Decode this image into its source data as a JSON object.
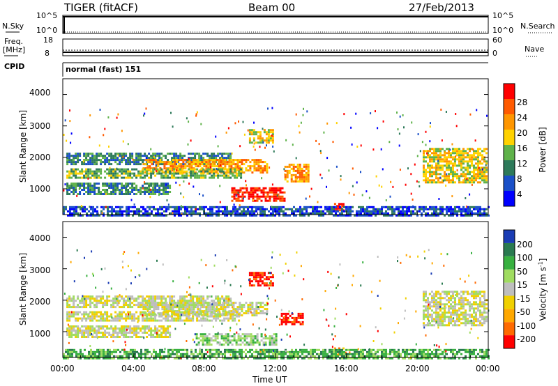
{
  "header": {
    "station": "TIGER (fitACF)",
    "beam": "Beam 00",
    "date": "27/Feb/2013"
  },
  "top_panels": {
    "nsky_label": "N.Sky",
    "nsky_ticks": [
      "10^5",
      "10^0"
    ],
    "nsearch_label": "N.Search",
    "nsearch_ticks": [
      "10^5",
      "10^0"
    ],
    "freq_label_line1": "Freq.",
    "freq_label_line2": "[MHz]",
    "freq_ticks": [
      "18",
      "8"
    ],
    "nave_label": "Nave",
    "nave_ticks": [
      "60",
      "0"
    ],
    "cpid_label": "CPID",
    "cpid_value": "normal (fast) 151"
  },
  "chart_data": [
    {
      "type": "heatmap",
      "name": "power",
      "ylabel": "Slant Range [km]",
      "xlabel": "Time UT",
      "x_ticks": [
        "00:00",
        "04:00",
        "08:00",
        "12:00",
        "16:00",
        "20:00",
        "00:00"
      ],
      "y_ticks": [
        "4000",
        "3000",
        "2000",
        "1000"
      ],
      "ylim": [
        180,
        4500
      ],
      "xlim_hours": [
        0,
        24
      ],
      "colorbar": {
        "label": "Power [dB]",
        "ticks": [
          "28",
          "24",
          "20",
          "16",
          "12",
          "8",
          "4"
        ],
        "colors": [
          "#0000ff",
          "#1a50c8",
          "#2e7a5a",
          "#5fb24a",
          "#ffd200",
          "#ff9600",
          "#ff5a00",
          "#ff0000"
        ]
      },
      "echo_regions": [
        {
          "t0": 0.2,
          "t1": 9.5,
          "r0": 1800,
          "r1": 2150,
          "level": 2
        },
        {
          "t0": 4.5,
          "t1": 11.5,
          "r0": 1550,
          "r1": 1950,
          "level": 5
        },
        {
          "t0": 0.2,
          "t1": 10.0,
          "r0": 1350,
          "r1": 1650,
          "level": 3
        },
        {
          "t0": 0.2,
          "t1": 6.0,
          "r0": 850,
          "r1": 1200,
          "level": 2
        },
        {
          "t0": 9.5,
          "t1": 12.5,
          "r0": 650,
          "r1": 1050,
          "level": 7
        },
        {
          "t0": 12.5,
          "t1": 13.8,
          "r0": 1250,
          "r1": 1800,
          "level": 5
        },
        {
          "t0": 10.5,
          "t1": 11.8,
          "r0": 2500,
          "r1": 2900,
          "level": 4
        },
        {
          "t0": 15.3,
          "t1": 15.8,
          "r0": 300,
          "r1": 550,
          "level": 7
        },
        {
          "t0": 20.3,
          "t1": 23.9,
          "r0": 1200,
          "r1": 2300,
          "level": 4
        },
        {
          "t0": 0.0,
          "t1": 24.0,
          "r0": 180,
          "r1": 450,
          "level": 1
        }
      ]
    },
    {
      "type": "heatmap",
      "name": "velocity",
      "ylabel": "Slant Range [km]",
      "xlabel": "Time UT",
      "x_ticks": [
        "00:00",
        "04:00",
        "08:00",
        "12:00",
        "16:00",
        "20:00",
        "00:00"
      ],
      "y_ticks": [
        "4000",
        "3000",
        "2000",
        "1000"
      ],
      "ylim": [
        180,
        4500
      ],
      "xlim_hours": [
        0,
        24
      ],
      "colorbar": {
        "label": "Velocity [m s",
        "label_sup": "-1",
        "label_end": "]",
        "ticks": [
          "200",
          "100",
          "50",
          "15",
          "-15",
          "-50",
          "-100",
          "-200"
        ],
        "colors": [
          "#ff0000",
          "#ff6a00",
          "#ffa800",
          "#f0d000",
          "#bebebe",
          "#a0dc60",
          "#38b040",
          "#2a7a50",
          "#1a3cb4"
        ]
      },
      "echo_regions": [
        {
          "t0": 0.2,
          "t1": 9.5,
          "r0": 1800,
          "r1": 2150,
          "level": 4
        },
        {
          "t0": 4.5,
          "t1": 11.5,
          "r0": 1550,
          "r1": 1950,
          "level": 4
        },
        {
          "t0": 0.2,
          "t1": 10.0,
          "r0": 1350,
          "r1": 1650,
          "level": 4
        },
        {
          "t0": 0.2,
          "t1": 6.0,
          "r0": 850,
          "r1": 1200,
          "level": 4
        },
        {
          "t0": 7.5,
          "t1": 12.0,
          "r0": 600,
          "r1": 950,
          "level": 5
        },
        {
          "t0": 12.3,
          "t1": 13.5,
          "r0": 1250,
          "r1": 1600,
          "level": 0
        },
        {
          "t0": 10.5,
          "t1": 11.8,
          "r0": 2500,
          "r1": 2900,
          "level": 0
        },
        {
          "t0": 15.3,
          "t1": 15.9,
          "r0": 250,
          "r1": 500,
          "level": 2
        },
        {
          "t0": 20.3,
          "t1": 23.9,
          "r0": 1200,
          "r1": 2300,
          "level": 4
        },
        {
          "t0": 0.0,
          "t1": 24.0,
          "r0": 180,
          "r1": 450,
          "level": 6
        }
      ]
    }
  ]
}
